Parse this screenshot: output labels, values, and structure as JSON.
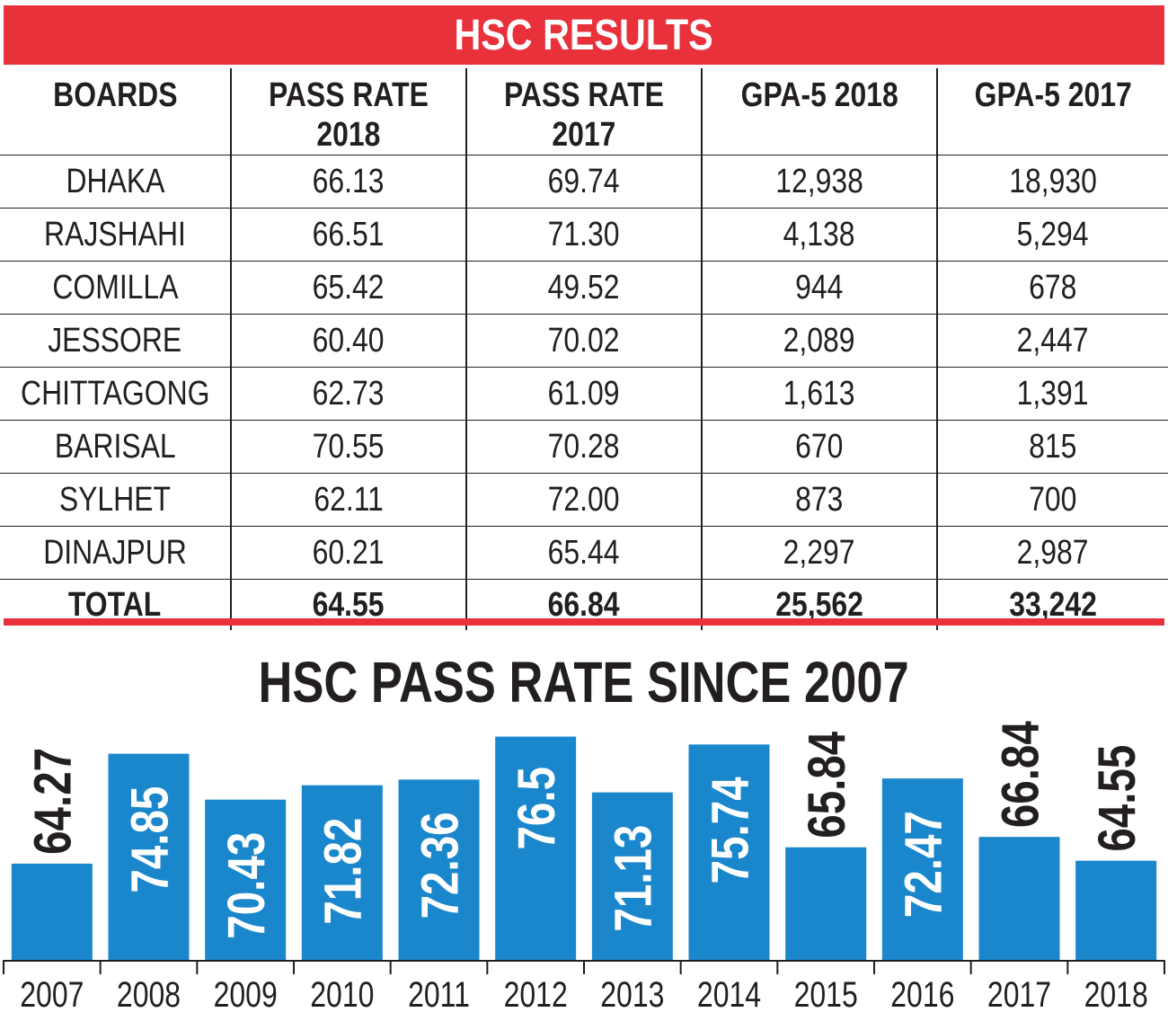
{
  "banner_title": "HSC RESULTS",
  "table": {
    "headers": [
      "BOARDS",
      "PASS RATE\n2018",
      "PASS RATE\n2017",
      "GPA-5 2018",
      "GPA-5 2017"
    ],
    "rows": [
      [
        "DHAKA",
        "66.13",
        "69.74",
        "12,938",
        "18,930"
      ],
      [
        "RAJSHAHI",
        "66.51",
        "71.30",
        "4,138",
        "5,294"
      ],
      [
        "COMILLA",
        "65.42",
        "49.52",
        "944",
        "678"
      ],
      [
        "JESSORE",
        "60.40",
        "70.02",
        "2,089",
        "2,447"
      ],
      [
        "CHITTAGONG",
        "62.73",
        "61.09",
        "1,613",
        "1,391"
      ],
      [
        "BARISAL",
        "70.55",
        "70.28",
        "670",
        "815"
      ],
      [
        "SYLHET",
        "62.11",
        "72.00",
        "873",
        "700"
      ],
      [
        "DINAJPUR",
        "60.21",
        "65.44",
        "2,297",
        "2,987"
      ]
    ],
    "total": [
      "TOTAL",
      "64.55",
      "66.84",
      "25,562",
      "33,242"
    ]
  },
  "colors": {
    "accent_red": "#e8313a",
    "bar_blue": "#1a87cc",
    "text": "#231f20"
  },
  "chart_data": {
    "type": "bar",
    "title": "HSC PASS RATE SINCE 2007",
    "categories": [
      "2007",
      "2008",
      "2009",
      "2010",
      "2011",
      "2012",
      "2013",
      "2014",
      "2015",
      "2016",
      "2017",
      "2018"
    ],
    "values": [
      64.27,
      74.85,
      70.43,
      71.82,
      72.36,
      76.5,
      71.13,
      75.74,
      65.84,
      72.47,
      66.84,
      64.55
    ],
    "value_labels": [
      "64.27",
      "74.85",
      "70.43",
      "71.82",
      "72.36",
      "76.5",
      "71.13",
      "75.74",
      "65.84",
      "72.47",
      "66.84",
      "64.55"
    ],
    "xlabel": "",
    "ylabel": "",
    "ylim": [
      55,
      77.5
    ],
    "grid": false,
    "legend": "none"
  }
}
